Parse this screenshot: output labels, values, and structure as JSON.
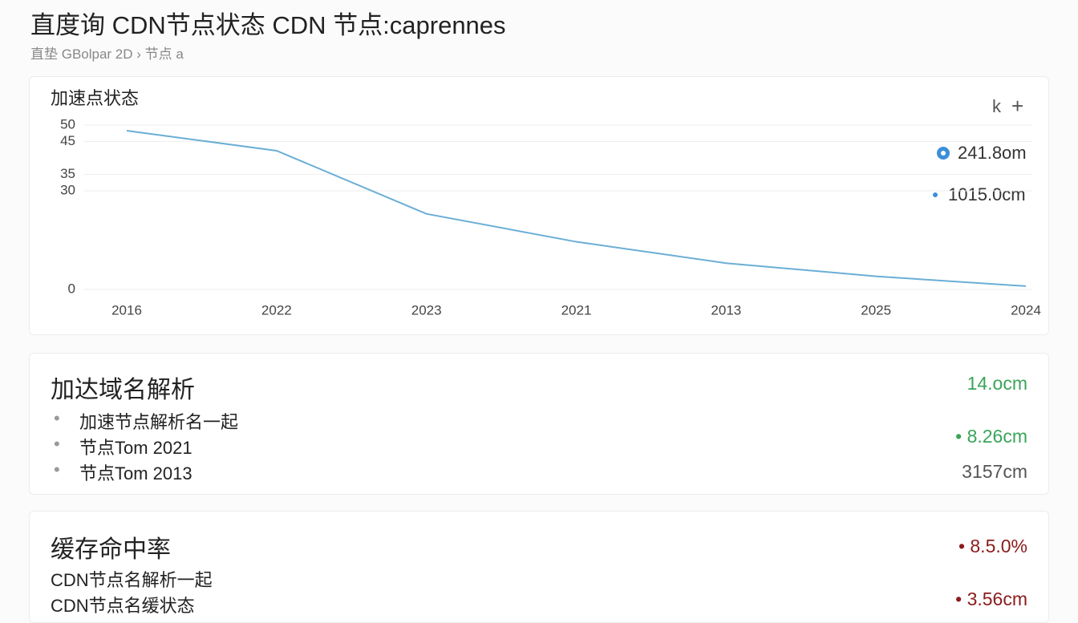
{
  "header": {
    "title": "直度询 CDN节点状态  CDN 节点:caprennes",
    "subtitle": "直垫 GBolpar 2D › 节点 a"
  },
  "chart_card": {
    "title": "加速点状态",
    "icons": [
      "k",
      "+"
    ]
  },
  "chart_data": {
    "type": "line",
    "categories": [
      "2016",
      "2022",
      "2023",
      "2021",
      "2013",
      "2025",
      "2024"
    ],
    "series": [
      {
        "color": "#6aaed6",
        "values": [
          48.3,
          42.2,
          23,
          14.5,
          8,
          4,
          1
        ]
      }
    ],
    "ylim": [
      0,
      50
    ],
    "yticks": [
      50,
      45,
      35,
      30,
      0
    ],
    "grid": true,
    "annotations": [
      "241.8om",
      "1015.0cm"
    ]
  },
  "domain_card": {
    "title": "加达域名解析",
    "items": [
      "加速节点解析名一起",
      "节点Tom 2021",
      "节点Tom 2013"
    ],
    "stats": [
      "14.ocm",
      "8.26cm",
      "3157cm"
    ]
  },
  "cache_card": {
    "title": "缓存命中率",
    "items": [
      "CDN节点名解析一起",
      "CDN节点名缓状态"
    ],
    "stats": [
      "8.5.0%",
      "3.56cm"
    ]
  }
}
